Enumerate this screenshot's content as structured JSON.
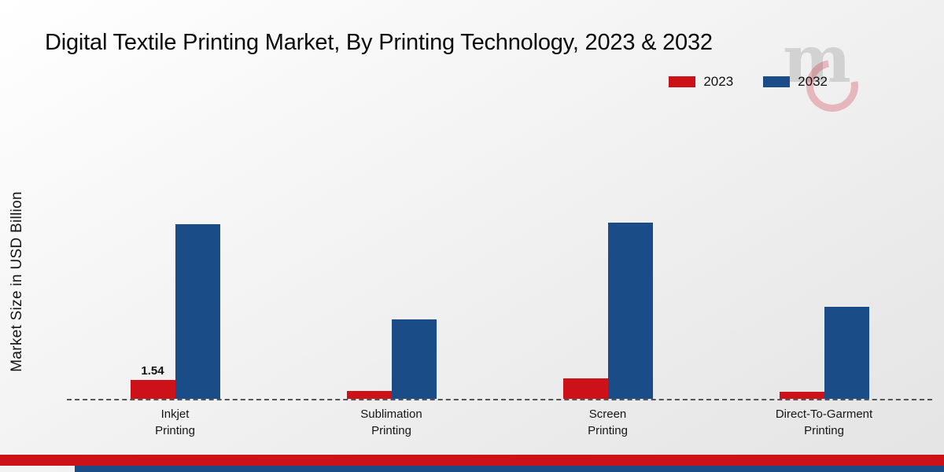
{
  "chart_data": {
    "type": "bar",
    "title": "Digital Textile Printing Market, By Printing Technology, 2023 & 2032",
    "ylabel": "Market Size in USD Billion",
    "categories": [
      "Inkjet\nPrinting",
      "Sublimation\nPrinting",
      "Screen\nPrinting",
      "Direct-To-Garment\nPrinting"
    ],
    "series": [
      {
        "name": "2023",
        "color": "#cc1118",
        "values": [
          1.54,
          0.65,
          1.7,
          0.6
        ]
      },
      {
        "name": "2032",
        "color": "#1a4d88",
        "values": [
          14.5,
          6.6,
          14.6,
          7.6
        ]
      }
    ],
    "annotations": [
      {
        "category_index": 0,
        "series_index": 0,
        "text": "1.54"
      }
    ],
    "ylim": [
      0,
      15
    ],
    "legend_position": "top-right",
    "baseline_style": "dashed",
    "grid": false
  },
  "footer": {
    "red_color": "#cc1118",
    "blue_color": "#1a4d88"
  }
}
